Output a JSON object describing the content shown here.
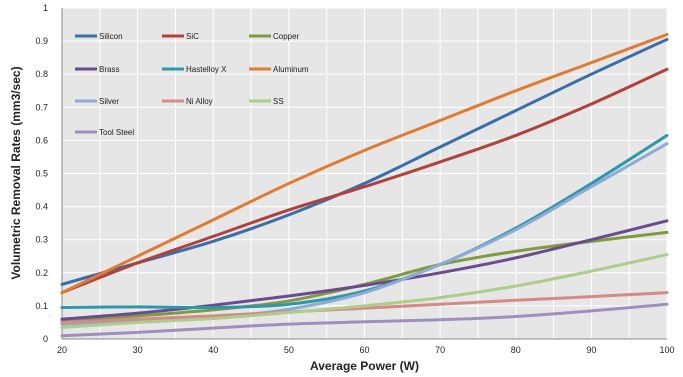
{
  "chart_data": {
    "type": "line",
    "title": "",
    "xlabel": "Average Power (W)",
    "ylabel": "Volumetric Removal Rates (mm3/sec)",
    "xlim": [
      20,
      100
    ],
    "ylim": [
      0,
      1
    ],
    "xticks": [
      20,
      30,
      40,
      50,
      60,
      70,
      80,
      90,
      100
    ],
    "yticks": [
      0,
      0.1,
      0.2,
      0.3,
      0.4,
      0.5,
      0.6,
      0.7,
      0.8,
      0.9,
      1
    ],
    "ytick_labels": [
      "0",
      "0.1",
      "0.2",
      "0.3",
      "0.4",
      "0.5",
      "0.6",
      "0.7",
      "0.8",
      "0.9",
      "1"
    ],
    "grid": true,
    "legend_position": "top-left, inside plot",
    "background": "#e6e6e6",
    "x": [
      20,
      30,
      40,
      50,
      60,
      70,
      80,
      90,
      100
    ],
    "series": [
      {
        "name": "Silicon",
        "color": "#3a6ea8",
        "values": [
          0.165,
          0.23,
          0.295,
          0.375,
          0.47,
          0.58,
          0.69,
          0.8,
          0.905
        ]
      },
      {
        "name": "SiC",
        "color": "#b0413e",
        "values": [
          0.14,
          0.23,
          0.31,
          0.39,
          0.46,
          0.535,
          0.615,
          0.71,
          0.815
        ]
      },
      {
        "name": "Copper",
        "color": "#7f9a43",
        "values": [
          0.055,
          0.07,
          0.088,
          0.115,
          0.165,
          0.225,
          0.265,
          0.295,
          0.322
        ]
      },
      {
        "name": "Brass",
        "color": "#6a4c8e",
        "values": [
          0.06,
          0.078,
          0.102,
          0.13,
          0.162,
          0.2,
          0.245,
          0.3,
          0.357
        ]
      },
      {
        "name": "Hastelloy X",
        "color": "#2e97aa",
        "values": [
          0.095,
          0.097,
          0.095,
          0.105,
          0.145,
          0.225,
          0.335,
          0.47,
          0.615
        ]
      },
      {
        "name": "Aluminum",
        "color": "#e07b33",
        "values": [
          0.14,
          0.25,
          0.36,
          0.47,
          0.57,
          0.66,
          0.75,
          0.835,
          0.92
        ]
      },
      {
        "name": "Silver",
        "color": "#8faad6",
        "values": [
          0.045,
          0.055,
          0.065,
          0.09,
          0.14,
          0.225,
          0.33,
          0.46,
          0.59
        ]
      },
      {
        "name": "Ni Alloy",
        "color": "#d48a87",
        "values": [
          0.05,
          0.06,
          0.07,
          0.082,
          0.093,
          0.105,
          0.117,
          0.128,
          0.14
        ]
      },
      {
        "name": "SS",
        "color": "#adcd8a",
        "values": [
          0.035,
          0.05,
          0.062,
          0.08,
          0.1,
          0.125,
          0.16,
          0.205,
          0.255
        ]
      },
      {
        "name": "Tool Steel",
        "color": "#9f8fbf",
        "values": [
          0.01,
          0.02,
          0.033,
          0.045,
          0.052,
          0.058,
          0.068,
          0.085,
          0.105
        ]
      }
    ]
  }
}
